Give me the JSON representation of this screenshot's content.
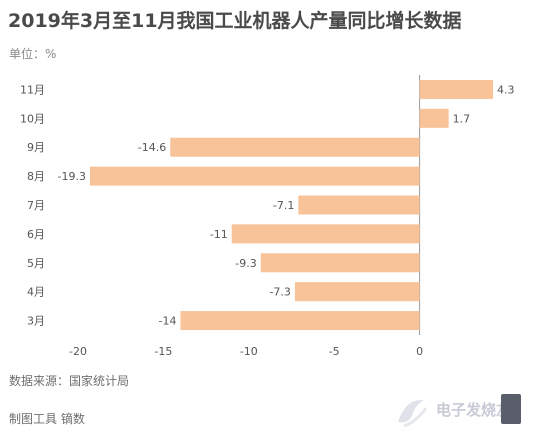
{
  "title": "2019年3月至11月我国工业机器人产量同比增长数据",
  "unit_label": "单位：%",
  "source_label": "数据来源：国家统计局",
  "maker_label": "制图工具 镝数",
  "watermark": {
    "text": "电子发烧友",
    "icon": "electronics-logo-icon"
  },
  "chart_data": {
    "type": "bar",
    "orientation": "horizontal",
    "title": "2019年3月至11月我国工业机器人产量同比增长数据",
    "xlabel": "",
    "ylabel": "",
    "unit": "%",
    "categories": [
      "11月",
      "10月",
      "9月",
      "8月",
      "7月",
      "6月",
      "5月",
      "4月",
      "3月"
    ],
    "values": [
      4.3,
      1.7,
      -14.6,
      -19.3,
      -7.1,
      -11,
      -9.3,
      -7.3,
      -14
    ],
    "value_labels": [
      "4.3",
      "1.7",
      "-14.6",
      "-19.3",
      "-7.1",
      "-11",
      "-9.3",
      "-7.3",
      "-14"
    ],
    "xlim": [
      -20,
      5
    ],
    "xticks": [
      -20,
      -15,
      -10,
      -5,
      0
    ],
    "xtick_labels": [
      "-20",
      "-15",
      "-10",
      "-5",
      "0"
    ],
    "grid": false,
    "legend": "none",
    "bar_color": "#f9c39a",
    "zero_line_color": "#9a9a9a"
  }
}
